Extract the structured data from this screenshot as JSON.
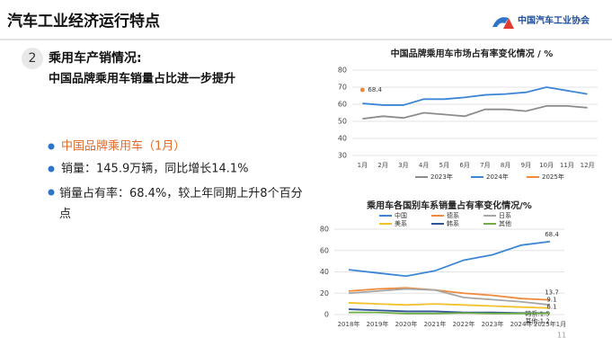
{
  "header": {
    "title": "汽车工业经济运行特点",
    "logo": "中国汽车工业协会"
  },
  "section": {
    "number": "2",
    "title": "乘用车产销情况:",
    "subtitle": "中国品牌乘用车销量占比进一步提升"
  },
  "bullets": [
    "中国品牌乘用车（1月）",
    "销量：145.9万辆，同比增长14.1%",
    "销量占有率：68.4%，较上年同期上升8个百分点"
  ],
  "page_number": "11",
  "chart_data": [
    {
      "type": "line",
      "title": "中国品牌乘用车市场占有率变化情况 / %",
      "categories": [
        "1月",
        "2月",
        "3月",
        "4月",
        "5月",
        "6月",
        "7月",
        "8月",
        "9月",
        "10月",
        "11月",
        "12月"
      ],
      "series": [
        {
          "name": "2023年",
          "color": "#8c8c8c",
          "values": [
            51.5,
            53,
            52,
            55,
            54,
            53,
            57,
            57,
            56,
            59,
            59,
            58
          ]
        },
        {
          "name": "2024年",
          "color": "#3d86d6",
          "values": [
            60.5,
            59.5,
            59.5,
            63,
            63,
            64,
            65.5,
            66,
            67,
            70,
            68,
            66
          ]
        },
        {
          "name": "2025年",
          "color": "#f08a3c",
          "values": [
            68.4,
            null,
            null,
            null,
            null,
            null,
            null,
            null,
            null,
            null,
            null,
            null
          ],
          "value_labels": [
            "68.4",
            null,
            null,
            null,
            null,
            null,
            null,
            null,
            null,
            null,
            null,
            null
          ]
        }
      ],
      "ylim": [
        30,
        80
      ],
      "yticks": [
        30,
        40,
        50,
        60,
        70,
        80
      ],
      "grid": true,
      "legend": "bottom"
    },
    {
      "type": "line",
      "title": "乘用车各国别车系销量占有率变化情况/%",
      "categories": [
        "2018年",
        "2019年",
        "2020年",
        "2021年",
        "2022年",
        "2023年",
        "2024年",
        "2025年1月"
      ],
      "series": [
        {
          "name": "中国",
          "color": "#3d86d6",
          "values": [
            42,
            39,
            36,
            41,
            51,
            56,
            65,
            68.4
          ],
          "value_labels": [
            null,
            null,
            null,
            null,
            null,
            null,
            null,
            "68.4"
          ]
        },
        {
          "name": "德系",
          "color": "#f08a3c",
          "values": [
            22,
            24,
            25,
            23,
            20,
            18,
            15,
            13.7
          ],
          "value_labels": [
            null,
            null,
            null,
            null,
            null,
            null,
            null,
            "13.7"
          ]
        },
        {
          "name": "日系",
          "color": "#a6a6a6",
          "values": [
            20,
            22,
            24,
            23,
            16,
            14,
            12,
            9.1
          ],
          "value_labels": [
            null,
            null,
            null,
            null,
            null,
            null,
            null,
            "9.1"
          ]
        },
        {
          "name": "美系",
          "color": "#f2c12e",
          "values": [
            11,
            10,
            9,
            10,
            9,
            8,
            7,
            6.1
          ],
          "value_labels": [
            null,
            null,
            null,
            null,
            null,
            null,
            null,
            "6.1"
          ]
        },
        {
          "name": "韩系",
          "color": "#2f5597",
          "values": [
            5,
            4,
            3,
            3,
            2,
            2,
            1.5,
            1.5
          ],
          "value_labels": [
            null,
            null,
            null,
            null,
            null,
            null,
            null,
            "韩系:1.5"
          ]
        },
        {
          "name": "其他",
          "color": "#70ad47",
          "values": [
            2,
            2,
            1,
            1,
            1.5,
            1,
            1,
            1.2
          ],
          "value_labels": [
            null,
            null,
            null,
            null,
            null,
            null,
            null,
            "其他:1.2"
          ]
        }
      ],
      "ylim": [
        0,
        80
      ],
      "yticks": [
        0,
        20,
        40,
        60,
        80
      ],
      "grid": true,
      "legend": "top"
    }
  ]
}
